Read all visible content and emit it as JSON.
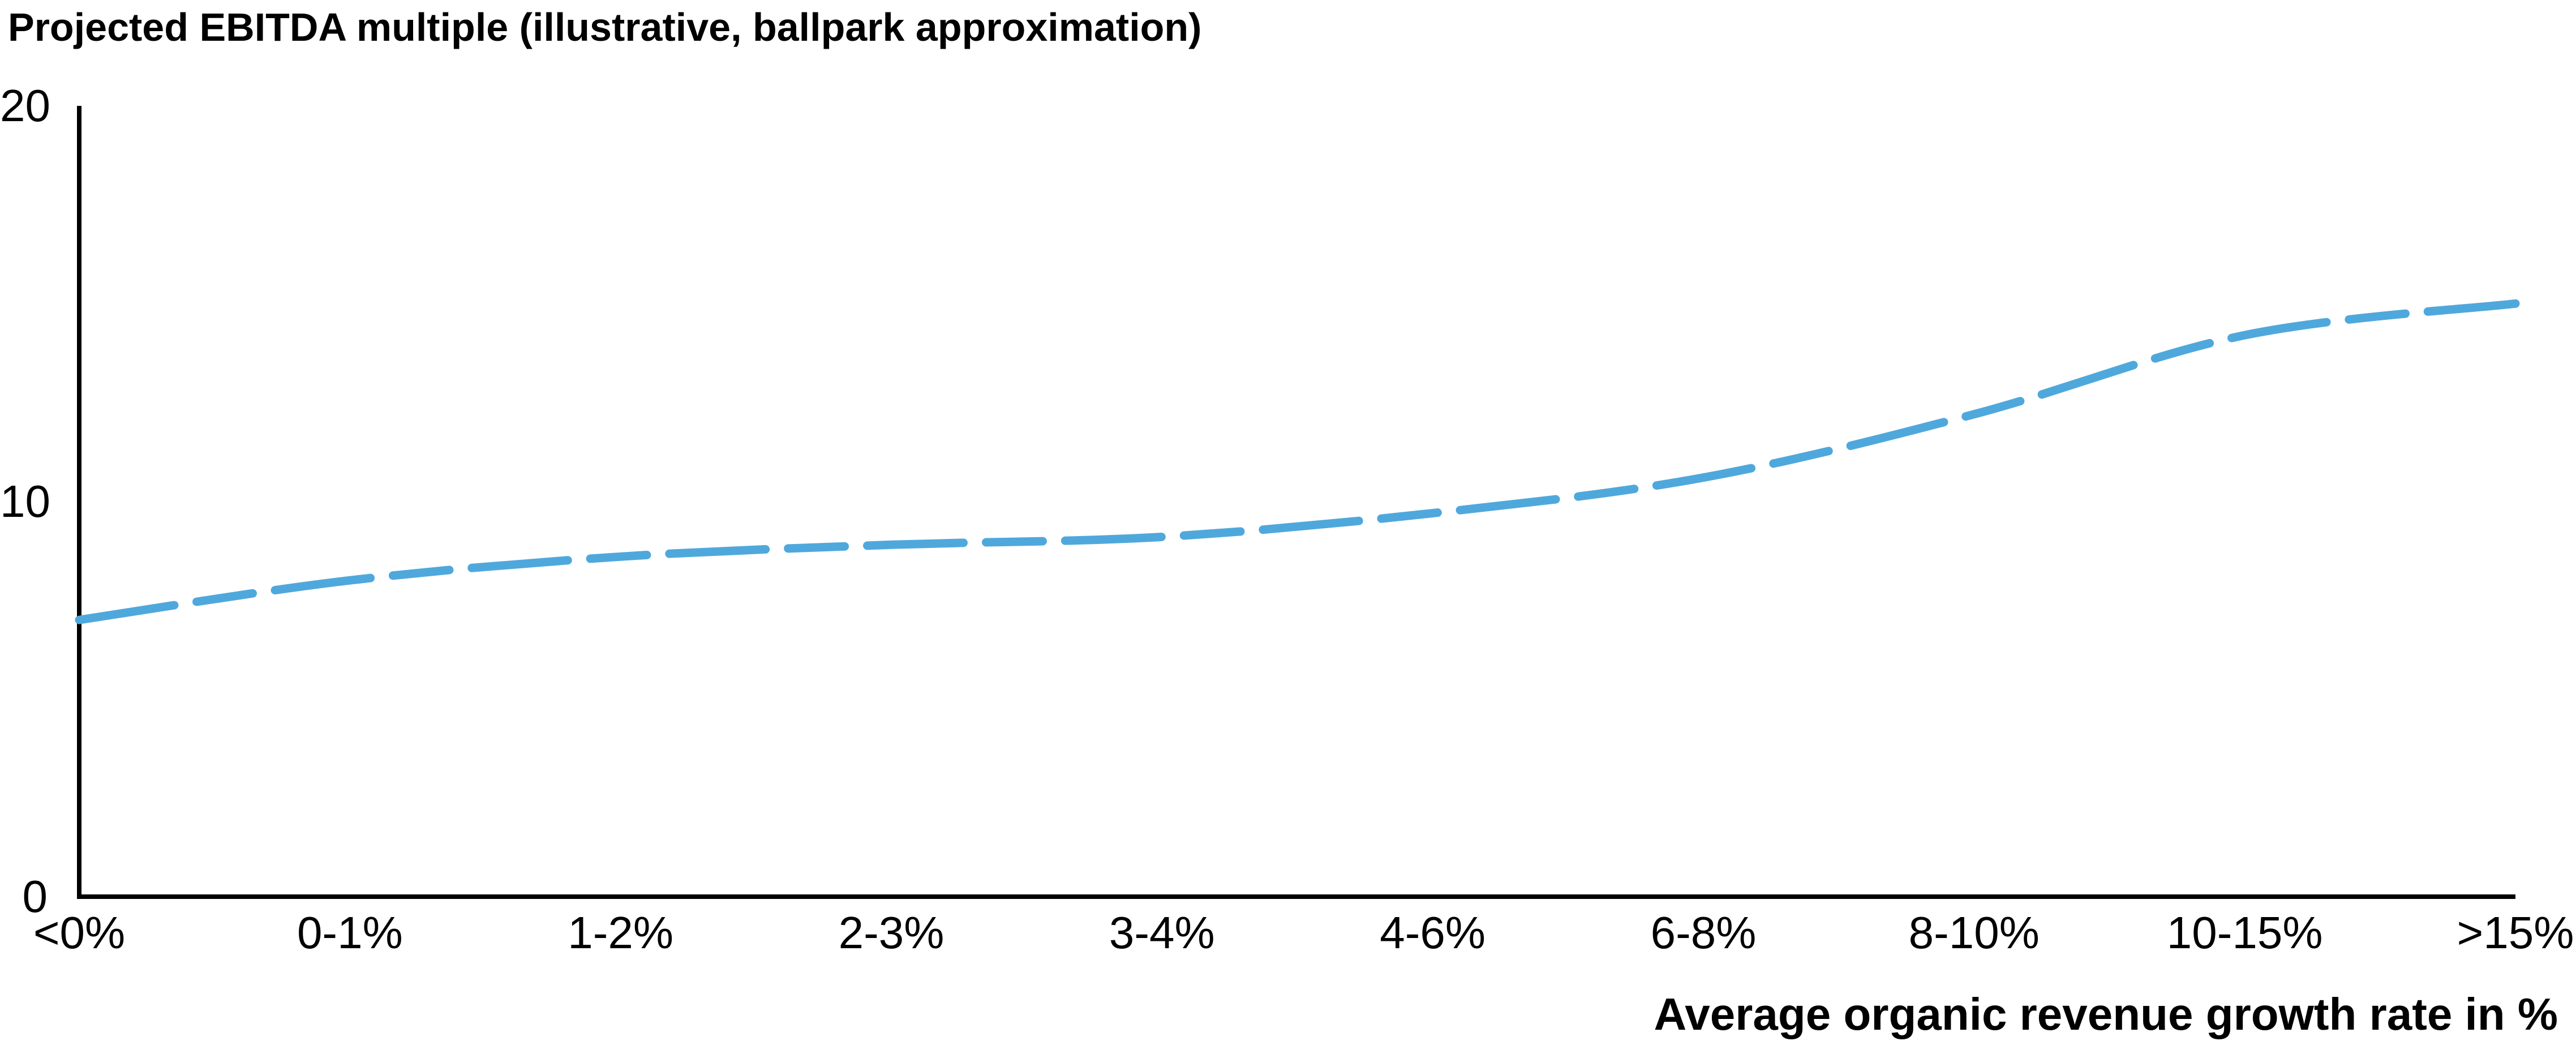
{
  "chart": {
    "title": "Projected EBITDA multiple (illustrative, ballpark approximation)",
    "x_axis_label": "Average organic revenue growth rate in %",
    "line_color": "#4FA8DC",
    "axis_color": "#000000",
    "text_color": "#000000"
  },
  "chart_data": {
    "type": "line",
    "line_style": "dashed",
    "title": "Projected EBITDA multiple (illustrative, ballpark approximation)",
    "xlabel": "Average organic revenue growth rate in %",
    "ylabel": "Projected EBITDA multiple",
    "categories": [
      "<0%",
      "0-1%",
      "1-2%",
      "2-3%",
      "3-4%",
      "4-6%",
      "6-8%",
      "8-10%",
      "10-15%",
      ">15%"
    ],
    "values": [
      7.0,
      8.0,
      8.6,
      8.9,
      9.1,
      9.7,
      10.6,
      12.2,
      14.2,
      15.0
    ],
    "y_ticks": [
      0,
      10,
      20
    ],
    "ylim": [
      0,
      20
    ],
    "grid": false,
    "legend": false
  }
}
